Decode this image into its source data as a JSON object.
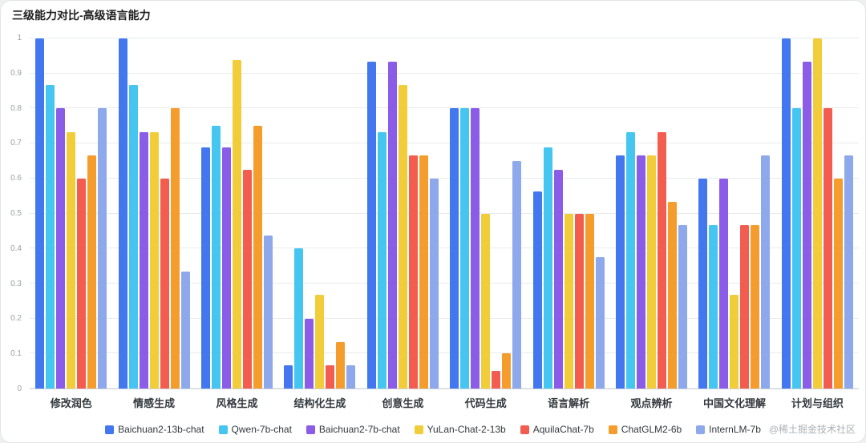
{
  "title": "三级能力对比-高级语言能力",
  "watermark": "@稀土掘金技术社区",
  "chart_data": {
    "type": "bar",
    "title": "三级能力对比-高级语言能力",
    "categories": [
      "修改润色",
      "情感生成",
      "风格生成",
      "结构化生成",
      "创意生成",
      "代码生成",
      "语言解析",
      "观点辨析",
      "中国文化理解",
      "计划与组织"
    ],
    "series": [
      {
        "name": "Baichuan2-13b-chat",
        "color": "#4277f0",
        "values": [
          1,
          1,
          0.688,
          0.067,
          0.933,
          0.8,
          0.562,
          0.667,
          0.6,
          1
        ]
      },
      {
        "name": "Qwen-7b-chat",
        "color": "#45c6f0",
        "values": [
          0.867,
          0.867,
          0.75,
          0.4,
          0.733,
          0.8,
          0.688,
          0.733,
          0.467,
          0.8
        ]
      },
      {
        "name": "Baichuan2-7b-chat",
        "color": "#8a5ce8",
        "values": [
          0.8,
          0.733,
          0.688,
          0.2,
          0.933,
          0.8,
          0.625,
          0.667,
          0.6,
          0.933
        ]
      },
      {
        "name": "YuLan-Chat-2-13b",
        "color": "#f1cd3a",
        "values": [
          0.733,
          0.733,
          0.938,
          0.267,
          0.867,
          0.5,
          0.5,
          0.667,
          0.267,
          1
        ]
      },
      {
        "name": "AquilaChat-7b",
        "color": "#f25d50",
        "values": [
          0.6,
          0.6,
          0.625,
          0.067,
          0.667,
          0.05,
          0.5,
          0.733,
          0.467,
          0.8
        ]
      },
      {
        "name": "ChatGLM2-6b",
        "color": "#f59d2c",
        "values": [
          0.667,
          0.8,
          0.75,
          0.133,
          0.667,
          0.1,
          0.5,
          0.533,
          0.467,
          0.6
        ]
      },
      {
        "name": "InternLM-7b",
        "color": "#8ea8ec",
        "values": [
          0.8,
          0.333,
          0.438,
          0.067,
          0.6,
          0.65,
          0.375,
          0.467,
          0.667,
          0.667
        ]
      }
    ],
    "ylim": [
      0,
      1
    ],
    "yticks": [
      0,
      0.1,
      0.2,
      0.3,
      0.4,
      0.5,
      0.6,
      0.7,
      0.8,
      0.9,
      1
    ],
    "grid": true,
    "legend_position": "bottom"
  }
}
